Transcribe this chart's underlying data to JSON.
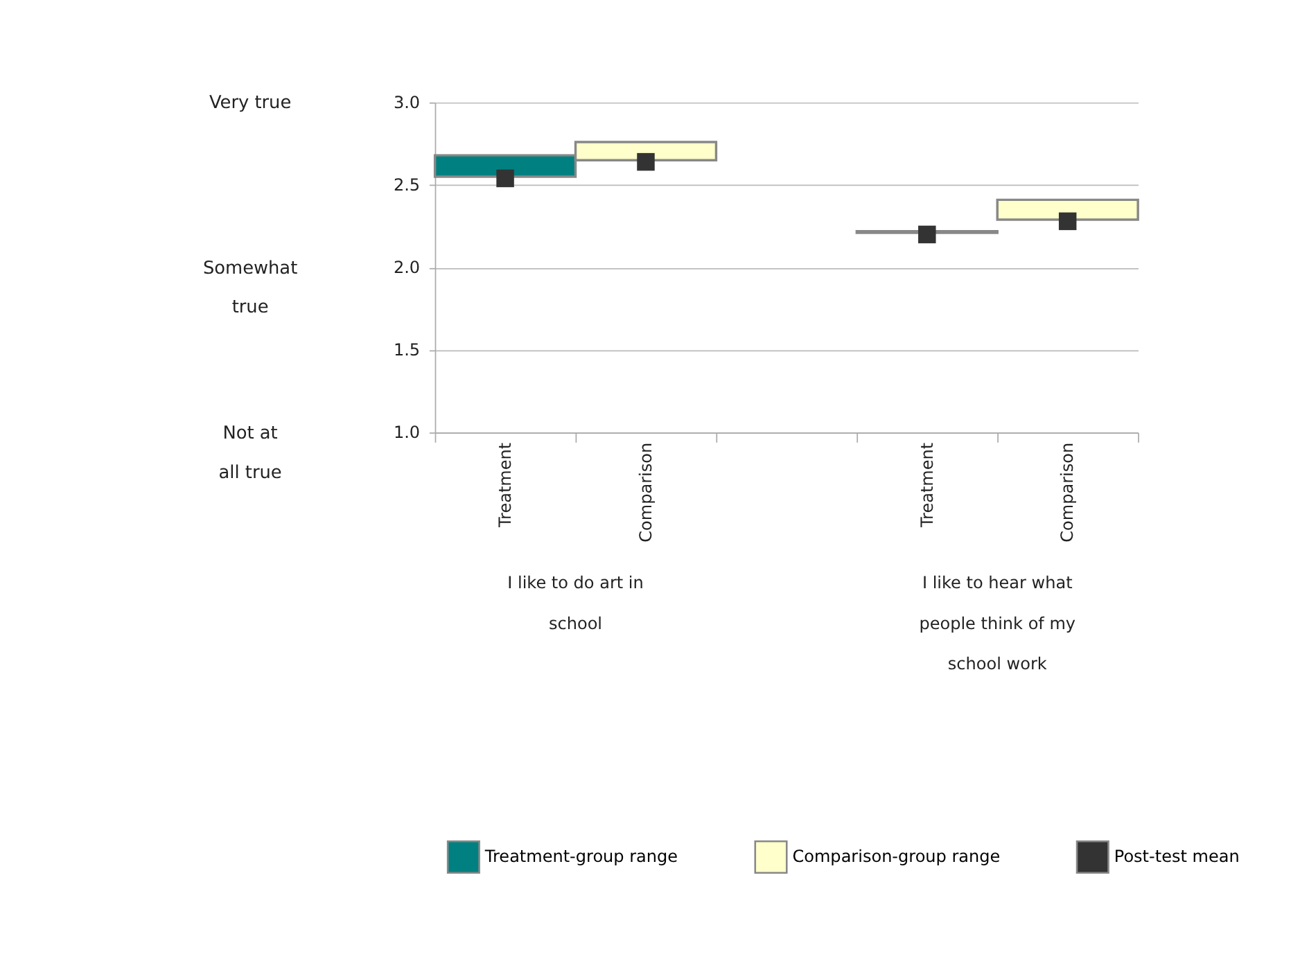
{
  "chart_data": {
    "type": "bar",
    "categories": [
      "Treatment",
      "Comparison",
      null,
      "Treatment",
      "Comparison"
    ],
    "series": [
      {
        "name": "Treatment-group range",
        "color": "#008080",
        "values": [
          0.13,
          null,
          null,
          0.01,
          null
        ],
        "base": [
          2.55,
          null,
          null,
          2.21,
          null
        ]
      },
      {
        "name": "Comparison-group range",
        "color": "#ffffcc",
        "values": [
          null,
          0.11,
          null,
          null,
          0.12
        ],
        "base": [
          null,
          2.65,
          null,
          null,
          2.29
        ]
      },
      {
        "name": "Post-test mean",
        "type": "scatter",
        "color": "#333333",
        "marker": "square",
        "values": [
          2.54,
          2.64,
          null,
          2.2,
          2.28
        ]
      }
    ],
    "ylim": [
      1,
      3
    ],
    "yticks": [
      {
        "value": 1,
        "label": "1.0"
      },
      {
        "value": 1.5,
        "label": "1.5"
      },
      {
        "value": 2,
        "label": "2.0"
      },
      {
        "value": 2.5,
        "label": "2.5"
      },
      {
        "value": 3,
        "label": "3.0"
      }
    ],
    "grid": "y",
    "legend": "bottom",
    "annotations": [
      "Very true",
      "Somewhat true",
      "Not at all true",
      "I like to do art in school",
      "I like to hear what people think of my school work"
    ]
  }
}
